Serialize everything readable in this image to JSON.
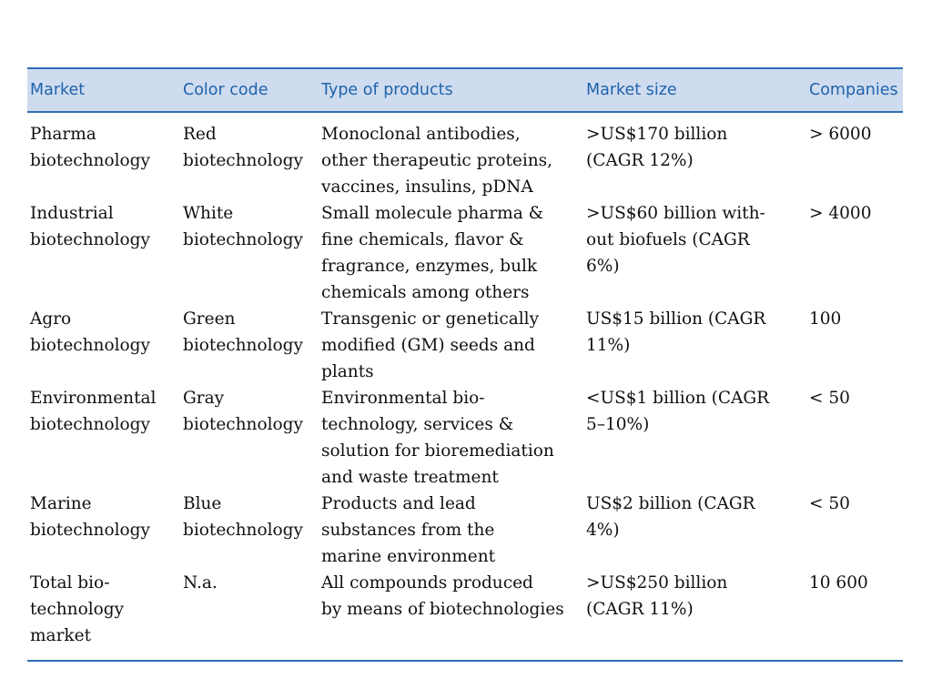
{
  "table": {
    "headers": [
      "Market",
      "Color code",
      "Type of products",
      "Market size",
      "Companies"
    ],
    "rows": [
      {
        "market": "Pharma\nbiotechnology",
        "color_code": "Red\nbiotechnology",
        "products": "Monoclonal antibodies,\nother therapeutic proteins,\nvaccines, insulins, pDNA",
        "market_size": ">US$170 billion\n(CAGR 12%)",
        "companies": "> 6000"
      },
      {
        "market": "Industrial\nbiotechnology",
        "color_code": "White\nbiotechnology",
        "products": "Small molecule pharma &\nfine chemicals, flavor &\nfragrance, enzymes, bulk\nchemicals among others",
        "market_size": ">US$60 billion with-\nout biofuels (CAGR\n6%)",
        "companies": "> 4000"
      },
      {
        "market": "Agro\nbiotechnology",
        "color_code": "Green\nbiotechnology",
        "products": "Transgenic or genetically\nmodified (GM) seeds and\nplants",
        "market_size": "US$15 billion (CAGR\n11%)",
        "companies": "100"
      },
      {
        "market": "Environmental\nbiotechnology",
        "color_code": "Gray\nbiotechnology",
        "products": "Environmental bio-\ntechnology, services &\nsolution for bioremediation\nand waste treatment",
        "market_size": "<US$1 billion (CAGR\n5–10%)",
        "companies": "< 50"
      },
      {
        "market": "Marine\nbiotechnology",
        "color_code": "Blue\nbiotechnology",
        "products": "Products and lead\nsubstances from the\nmarine environment",
        "market_size": "US$2 billion (CAGR\n4%)",
        "companies": "< 50"
      },
      {
        "market": "Total bio-\ntechnology\nmarket",
        "color_code": "N.a.",
        "products": "All compounds produced\nby means of biotechnologies",
        "market_size": ">US$250 billion\n(CAGR 11%)",
        "companies": "10 600"
      }
    ]
  },
  "colors": {
    "header_bg": "#cfdcef",
    "header_text": "#1f63ab",
    "rule": "#2e6eb3"
  }
}
